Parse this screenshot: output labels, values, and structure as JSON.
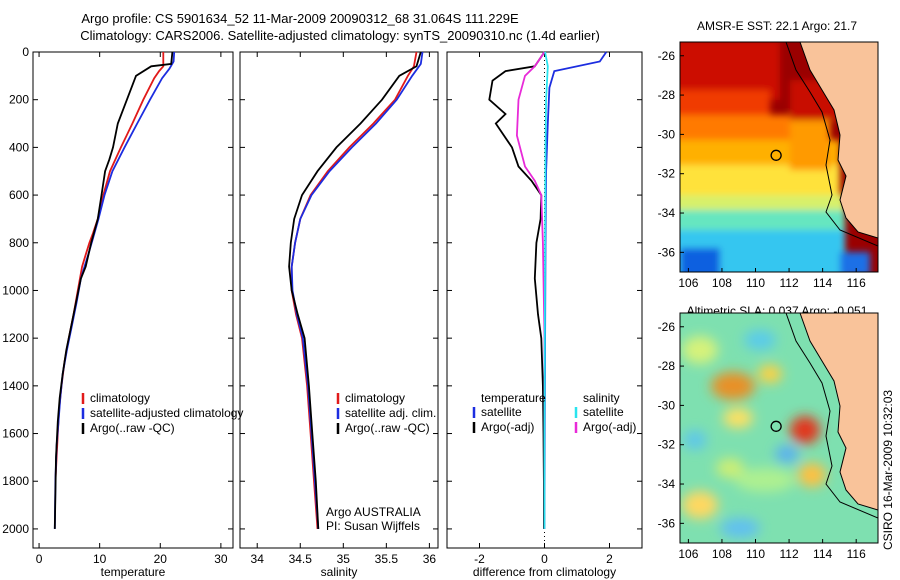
{
  "title_line1": "Argo profile: CS 5901634_52 11-Mar-2009 20090312_68 31.064S 111.229E",
  "title_line2": "Climatology: CARS2006. Satellite-adjusted climatology: synTS_20090310.nc (1.4d earlier)",
  "side_label": "CSIRO 16-Mar-2009 10:32:03",
  "colors": {
    "red": "#e11a1a",
    "blue": "#1c2de0",
    "black": "#000000",
    "magenta": "#e82ad8",
    "cyan": "#29e4ee"
  },
  "chart_data": [
    {
      "type": "line",
      "xlabel": "temperature",
      "xlim": [
        -1,
        32
      ],
      "ylim": [
        2080,
        0
      ],
      "xticks": [
        "0",
        "10",
        "20",
        "30"
      ],
      "xtick_values": [
        0,
        10,
        20,
        30
      ],
      "yticks": [
        "0",
        "200",
        "400",
        "600",
        "800",
        "1000",
        "1200",
        "1400",
        "1600",
        "1800",
        "2000"
      ],
      "ytick_values": [
        0,
        200,
        400,
        600,
        800,
        1000,
        1200,
        1400,
        1600,
        1800,
        2000
      ],
      "legend": [
        {
          "label": "climatology",
          "color": "red"
        },
        {
          "label": "satellite-adjusted climatology",
          "color": "blue"
        },
        {
          "label": "Argo(..raw -QC)",
          "color": "black"
        }
      ],
      "series": [
        {
          "color": "red",
          "x": [
            20.5,
            20.5,
            19.8,
            19,
            17.2,
            15.4,
            13.5,
            11.7,
            10.6,
            9.7,
            8.9,
            8.3,
            7.7,
            7.1,
            6.4,
            5.7,
            4.9,
            4.2,
            3.7,
            3.3,
            3.1,
            2.7
          ],
          "y": [
            0,
            60,
            80,
            110,
            200,
            300,
            400,
            500,
            600,
            700,
            760,
            800,
            850,
            900,
            1000,
            1100,
            1200,
            1300,
            1400,
            1500,
            1600,
            1800
          ]
        },
        {
          "color": "blue",
          "x": [
            22.3,
            22.2,
            21.5,
            20.3,
            18.3,
            16.2,
            14.1,
            12.1,
            10.8,
            9.8,
            8.8,
            8.1,
            7.5,
            6.9,
            6.2,
            5.4,
            4.6,
            3.9,
            3.5,
            3.2,
            2.9,
            2.7,
            2.6
          ],
          "y": [
            0,
            40,
            70,
            110,
            200,
            300,
            400,
            500,
            600,
            700,
            790,
            850,
            900,
            950,
            1050,
            1150,
            1250,
            1350,
            1450,
            1550,
            1650,
            1800,
            2000
          ]
        },
        {
          "color": "black",
          "x": [
            22,
            21.8,
            18.5,
            16,
            14.5,
            13,
            12.2,
            11.6,
            10.9,
            10.3,
            9.7,
            8.6,
            7.7,
            6.9,
            6.1,
            5.3,
            4.5,
            3.9,
            3.4,
            3.1,
            2.8,
            2.6
          ],
          "y": [
            0,
            50,
            60,
            100,
            200,
            300,
            400,
            450,
            500,
            600,
            700,
            800,
            900,
            950,
            1050,
            1150,
            1250,
            1350,
            1450,
            1550,
            1700,
            2000
          ]
        }
      ]
    },
    {
      "type": "line",
      "xlabel": "salinity",
      "xlim": [
        33.8,
        36.1
      ],
      "ylim": [
        2080,
        0
      ],
      "xticks": [
        "34",
        "34.5",
        "35",
        "35.5",
        "36"
      ],
      "xtick_values": [
        34,
        34.5,
        35,
        35.5,
        36
      ],
      "legend": [
        {
          "label": "climatology",
          "color": "red"
        },
        {
          "label": "satellite adj. clim.",
          "color": "blue"
        },
        {
          "label": "Argo(..raw -QC)",
          "color": "black"
        }
      ],
      "annotation": [
        "Argo AUSTRALIA",
        "PI: Susan Wijffels"
      ],
      "series": [
        {
          "color": "red",
          "x": [
            35.85,
            35.82,
            35.75,
            35.6,
            35.35,
            35.07,
            34.82,
            34.62,
            34.5,
            34.44,
            34.4,
            34.4,
            34.45,
            34.52,
            34.58,
            34.62,
            34.66,
            34.7
          ],
          "y": [
            0,
            60,
            100,
            200,
            300,
            400,
            500,
            600,
            700,
            800,
            900,
            1000,
            1100,
            1200,
            1400,
            1600,
            1800,
            2000
          ]
        },
        {
          "color": "blue",
          "x": [
            35.92,
            35.9,
            35.8,
            35.62,
            35.38,
            35.1,
            34.84,
            34.63,
            34.5,
            34.44,
            34.4,
            34.41,
            34.46,
            34.53,
            34.59,
            34.63,
            34.67,
            34.71
          ],
          "y": [
            0,
            50,
            100,
            200,
            300,
            400,
            500,
            600,
            700,
            800,
            900,
            1000,
            1100,
            1200,
            1400,
            1600,
            1800,
            2000
          ]
        },
        {
          "color": "black",
          "x": [
            35.9,
            35.85,
            35.65,
            35.45,
            35.2,
            34.92,
            34.7,
            34.52,
            34.43,
            34.39,
            34.37,
            34.4,
            34.47,
            34.55,
            34.6,
            34.64,
            34.68,
            34.71
          ],
          "y": [
            0,
            60,
            100,
            200,
            300,
            400,
            500,
            600,
            700,
            800,
            900,
            1000,
            1100,
            1200,
            1400,
            1600,
            1800,
            2000
          ]
        }
      ]
    },
    {
      "type": "line",
      "xlabel": "difference from climatology",
      "xlim": [
        -3,
        3
      ],
      "ylim": [
        2080,
        0
      ],
      "xticks": [
        "-2",
        "0",
        "2"
      ],
      "xtick_values": [
        -2,
        0,
        2
      ],
      "legend": [
        {
          "label": "temperature",
          "color": ""
        },
        {
          "label": "satellite",
          "color": "blue"
        },
        {
          "label": "Argo(-adj)",
          "color": "black"
        },
        {
          "label": "salinity",
          "color": ""
        },
        {
          "label": "satellite",
          "color": "cyan"
        },
        {
          "label": "Argo(-adj)",
          "color": "magenta"
        }
      ],
      "series": [
        {
          "color": "black",
          "x": [
            0,
            -0.3,
            -1.2,
            -1.6,
            -1.7,
            -1.2,
            -1.5,
            -1.0,
            -0.8,
            -0.4,
            -0.1,
            -0.12,
            -0.25,
            -0.3,
            -0.2,
            -0.1,
            -0.05,
            -0.03,
            -0.02,
            -0.02
          ],
          "y": [
            0,
            60,
            80,
            120,
            200,
            260,
            300,
            400,
            480,
            540,
            600,
            700,
            800,
            950,
            1100,
            1200,
            1400,
            1600,
            1800,
            2000
          ]
        },
        {
          "color": "blue",
          "x": [
            1.9,
            1.7,
            0.3,
            0.15,
            0.1,
            0.05,
            0.03,
            0.02,
            0.01,
            0.0
          ],
          "y": [
            0,
            40,
            80,
            150,
            300,
            500,
            800,
            1200,
            1600,
            2000
          ]
        },
        {
          "color": "magenta",
          "x": [
            0,
            -0.3,
            -0.6,
            -0.8,
            -0.85,
            -0.6,
            -0.3,
            -0.1,
            -0.05,
            0,
            0
          ],
          "y": [
            0,
            60,
            100,
            200,
            350,
            480,
            540,
            600,
            800,
            1200,
            2000
          ]
        },
        {
          "color": "cyan",
          "x": [
            0.02,
            0.1,
            0.05,
            0.03,
            0.02,
            0.01,
            0.0,
            0.0
          ],
          "y": [
            0,
            60,
            200,
            400,
            800,
            1200,
            1600,
            2000
          ]
        }
      ]
    },
    {
      "type": "heatmap",
      "title": "AMSR-E SST: 22.1 Argo: 21.7",
      "xlim": [
        105.5,
        117.3
      ],
      "ylim": [
        -37,
        -25.3
      ],
      "xticks": [
        "106",
        "108",
        "110",
        "112",
        "114",
        "116"
      ],
      "xtick_values": [
        106,
        108,
        110,
        112,
        114,
        116
      ],
      "yticks": [
        "-26",
        "-28",
        "-30",
        "-32",
        "-34",
        "-36"
      ],
      "ytick_values": [
        -26,
        -28,
        -30,
        -32,
        -34,
        -36
      ],
      "marker": {
        "lon": 111.229,
        "lat": -31.064
      }
    },
    {
      "type": "heatmap",
      "title": "Altimetric SLA: 0.037 Argo: -0.051",
      "xlim": [
        105.5,
        117.3
      ],
      "ylim": [
        -37,
        -25.3
      ],
      "xticks": [
        "106",
        "108",
        "110",
        "112",
        "114",
        "116"
      ],
      "xtick_values": [
        106,
        108,
        110,
        112,
        114,
        116
      ],
      "yticks": [
        "-26",
        "-28",
        "-30",
        "-32",
        "-34",
        "-36"
      ],
      "ytick_values": [
        -26,
        -28,
        -30,
        -32,
        -34,
        -36
      ],
      "marker": {
        "lon": 111.229,
        "lat": -31.064
      }
    }
  ]
}
